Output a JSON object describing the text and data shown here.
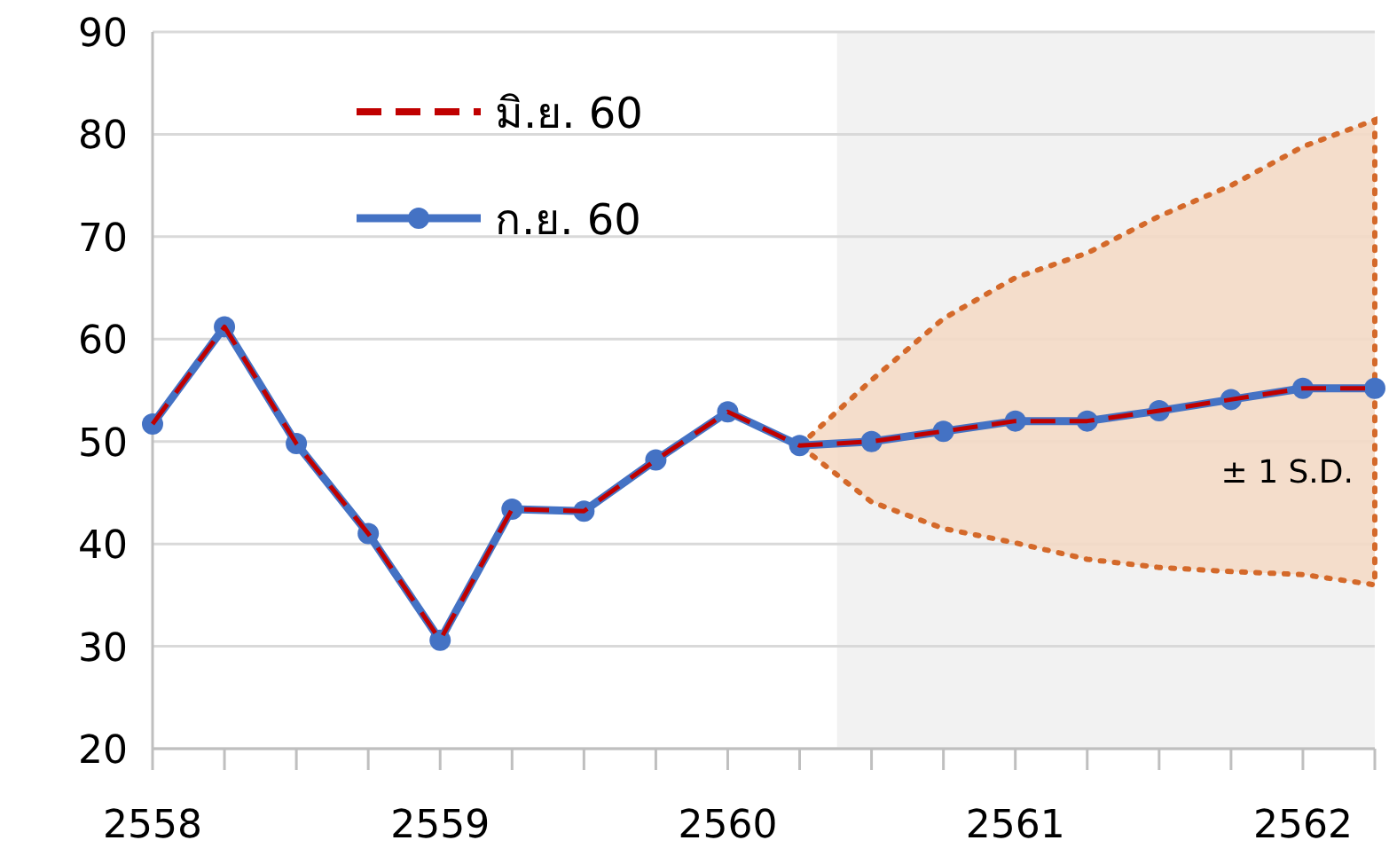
{
  "chart_data": {
    "type": "line",
    "x": [
      2558,
      2558.25,
      2558.5,
      2558.75,
      2559,
      2559.25,
      2559.5,
      2559.75,
      2560,
      2560.25,
      2560.5,
      2560.75,
      2561,
      2561.25,
      2561.5,
      2561.75,
      2562,
      2562.25
    ],
    "series": [
      {
        "name": "มิ.ย. 60",
        "color": "#c00000",
        "line_style": "dashed",
        "marker": "none",
        "values": [
          51.7,
          61.2,
          49.8,
          41,
          30.6,
          43.4,
          43.2,
          48.2,
          52.9,
          49.6,
          50,
          51,
          52,
          52,
          53,
          54.1,
          55.2,
          55.2
        ]
      },
      {
        "name": "ก.ย. 60",
        "color": "#4472c4",
        "line_style": "solid",
        "marker": "circle",
        "values": [
          51.7,
          61.2,
          49.8,
          41,
          30.6,
          43.4,
          43.2,
          48.2,
          52.9,
          49.6,
          50,
          51,
          52,
          52,
          53,
          54.1,
          55.2,
          55.2
        ],
        "lower": [
          null,
          null,
          null,
          null,
          null,
          null,
          null,
          null,
          null,
          49.6,
          44.1,
          41.5,
          40.1,
          38.5,
          37.7,
          37.3,
          37,
          36
        ],
        "upper": [
          null,
          null,
          null,
          null,
          null,
          null,
          null,
          null,
          null,
          49.6,
          56,
          62,
          66,
          68.4,
          72,
          75,
          78.8,
          81.4
        ]
      }
    ],
    "xlim": [
      2558,
      2562.25
    ],
    "xticks": [
      2558,
      {
        "value": 2558.25,
        "label": null
      },
      {
        "value": 2558.5,
        "label": null
      },
      {
        "value": 2558.75,
        "label": null
      },
      2559,
      {
        "value": 2559.25,
        "label": null
      },
      {
        "value": 2559.5,
        "label": null
      },
      {
        "value": 2559.75,
        "label": null
      },
      2560,
      {
        "value": 2560.25,
        "label": null
      },
      {
        "value": 2560.5,
        "label": null
      },
      {
        "value": 2560.75,
        "label": null
      },
      2561,
      {
        "value": 2561.25,
        "label": null
      },
      {
        "value": 2561.5,
        "label": null
      },
      {
        "value": 2561.75,
        "label": null
      },
      2562,
      {
        "value": 2562.25,
        "label": null
      }
    ],
    "ylim": [
      20,
      90
    ],
    "yticks": [
      20,
      30,
      40,
      50,
      60,
      70,
      80,
      90
    ],
    "grid": "y",
    "legend": "top left",
    "bands": [
      {
        "axis": "x",
        "from": 2560.38,
        "to": 2562.25,
        "color": "#f2f2f2"
      }
    ],
    "annotations": [
      "± 1 S.D."
    ]
  }
}
